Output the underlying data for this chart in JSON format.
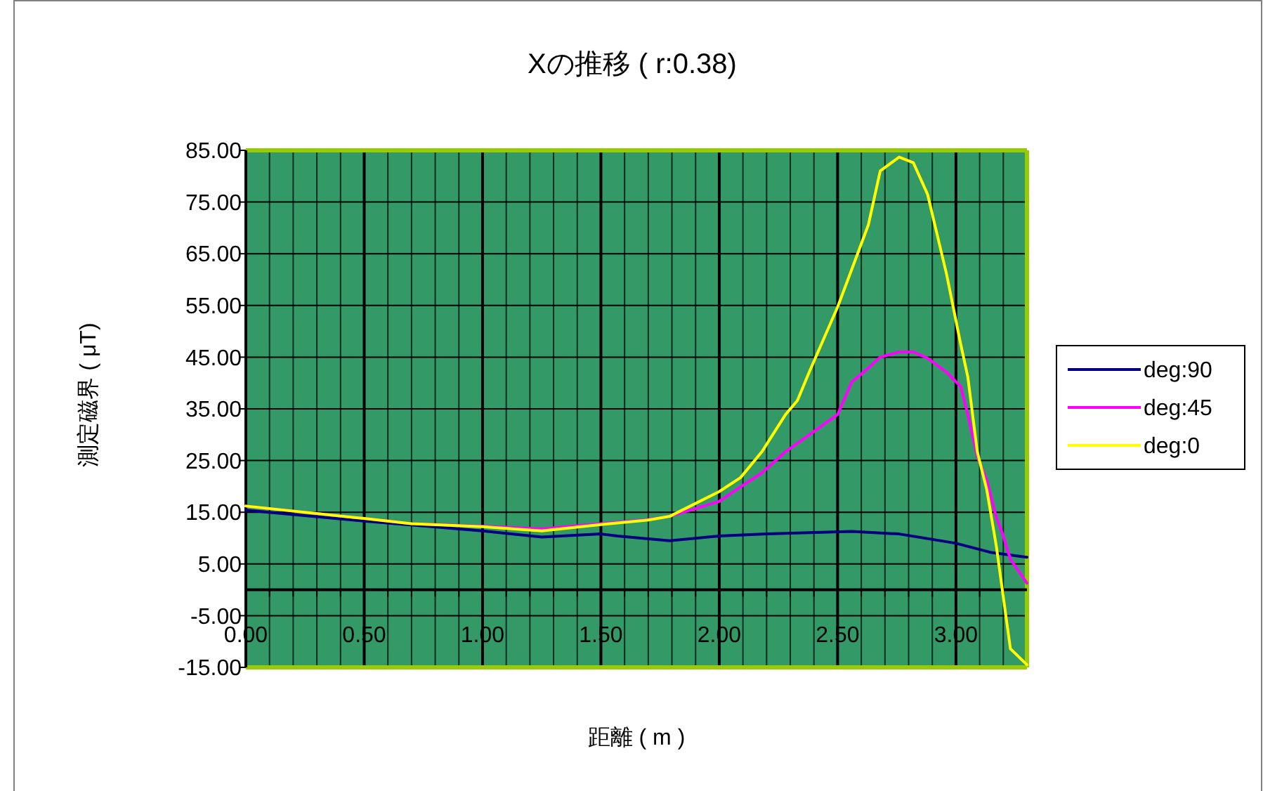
{
  "chart_data": {
    "type": "line",
    "title": "Xの推移 ( r:0.38)",
    "xlabel": "距離 ( m )",
    "ylabel": "測定磁界 ( μT)",
    "xlim": [
      0,
      3.3
    ],
    "ylim": [
      -15,
      85
    ],
    "xticks": [
      {
        "value": 0,
        "label": "0.00"
      },
      {
        "value": 0.1,
        "label": null
      },
      {
        "value": 0.2,
        "label": null
      },
      {
        "value": 0.3,
        "label": null
      },
      {
        "value": 0.4,
        "label": null
      },
      {
        "value": 0.5,
        "label": "0.50"
      },
      {
        "value": 0.6,
        "label": null
      },
      {
        "value": 0.7,
        "label": null
      },
      {
        "value": 0.8,
        "label": null
      },
      {
        "value": 0.9,
        "label": null
      },
      {
        "value": 1,
        "label": "1.00"
      },
      {
        "value": 1.1,
        "label": null
      },
      {
        "value": 1.2,
        "label": null
      },
      {
        "value": 1.3,
        "label": null
      },
      {
        "value": 1.4,
        "label": null
      },
      {
        "value": 1.5,
        "label": "1.50"
      },
      {
        "value": 1.6,
        "label": null
      },
      {
        "value": 1.7,
        "label": null
      },
      {
        "value": 1.8,
        "label": null
      },
      {
        "value": 1.9,
        "label": null
      },
      {
        "value": 2,
        "label": "2.00"
      },
      {
        "value": 2.1,
        "label": null
      },
      {
        "value": 2.2,
        "label": null
      },
      {
        "value": 2.3,
        "label": null
      },
      {
        "value": 2.4,
        "label": null
      },
      {
        "value": 2.5,
        "label": "2.50"
      },
      {
        "value": 2.6,
        "label": null
      },
      {
        "value": 2.7,
        "label": null
      },
      {
        "value": 2.8,
        "label": null
      },
      {
        "value": 2.9,
        "label": null
      },
      {
        "value": 3,
        "label": "3.00"
      },
      {
        "value": 3.1,
        "label": null
      },
      {
        "value": 3.2,
        "label": null
      }
    ],
    "yticks": [
      {
        "value": 85,
        "label": "85.00"
      },
      {
        "value": 75,
        "label": "75.00"
      },
      {
        "value": 65,
        "label": "65.00"
      },
      {
        "value": 55,
        "label": "55.00"
      },
      {
        "value": 45,
        "label": "45.00"
      },
      {
        "value": 35,
        "label": "35.00"
      },
      {
        "value": 25,
        "label": "25.00"
      },
      {
        "value": 15,
        "label": "15.00"
      },
      {
        "value": 5,
        "label": "5.00"
      },
      {
        "value": -5,
        "label": "-5.00"
      },
      {
        "value": -15,
        "label": "-15.00"
      }
    ],
    "grid": true,
    "legend": "right",
    "marker": "none",
    "line_style": "solid",
    "series": [
      {
        "name": "deg:90",
        "color": "#000080",
        "x": [
          0,
          0.5,
          1,
          1.25,
          1.5,
          1.57,
          1.79,
          2,
          2.2,
          2.56,
          2.76,
          3,
          3.15,
          3.3
        ],
        "values": [
          15.4,
          13.3,
          11.4,
          10.2,
          10.8,
          10.4,
          9.5,
          10.4,
          10.8,
          11.3,
          10.8,
          9,
          7.2,
          6.3
        ]
      },
      {
        "name": "deg:45",
        "color": "#ff00ff",
        "x": [
          0,
          0.5,
          0.7,
          1,
          1.25,
          1.5,
          1.7,
          1.79,
          2,
          2.09,
          2.18,
          2.28,
          2.5,
          2.56,
          2.63,
          2.68,
          2.76,
          2.82,
          2.88,
          2.96,
          3.02,
          3.05,
          3.09,
          3.13,
          3.17,
          3.2,
          3.23,
          3.3
        ],
        "values": [
          16.2,
          13.8,
          12.8,
          12.3,
          11.8,
          12.8,
          13.6,
          14.2,
          17.1,
          19.9,
          22.6,
          26.7,
          33.9,
          40.2,
          42.9,
          45,
          46,
          46,
          44.8,
          42.1,
          39.3,
          33.9,
          25.8,
          21.2,
          14.1,
          10.4,
          5.9,
          1.3
        ]
      },
      {
        "name": "deg:0",
        "color": "#ffff00",
        "x": [
          0,
          0.5,
          0.7,
          1,
          1.25,
          1.5,
          1.7,
          1.79,
          2,
          2.09,
          2.18,
          2.28,
          2.33,
          2.38,
          2.5,
          2.56,
          2.63,
          2.68,
          2.76,
          2.82,
          2.88,
          2.96,
          3.02,
          3.05,
          3.09,
          3.13,
          3.17,
          3.2,
          3.23,
          3.3
        ],
        "values": [
          16.2,
          13.8,
          12.8,
          12.2,
          11.4,
          12.6,
          13.5,
          14.2,
          19,
          21.7,
          26.7,
          33.9,
          36.6,
          42.1,
          54.7,
          62,
          70.6,
          81,
          83.7,
          82.6,
          76.5,
          61.1,
          47.5,
          41.2,
          26.7,
          19.4,
          8.6,
          -1.4,
          -11.4,
          -14.5
        ]
      }
    ]
  }
}
